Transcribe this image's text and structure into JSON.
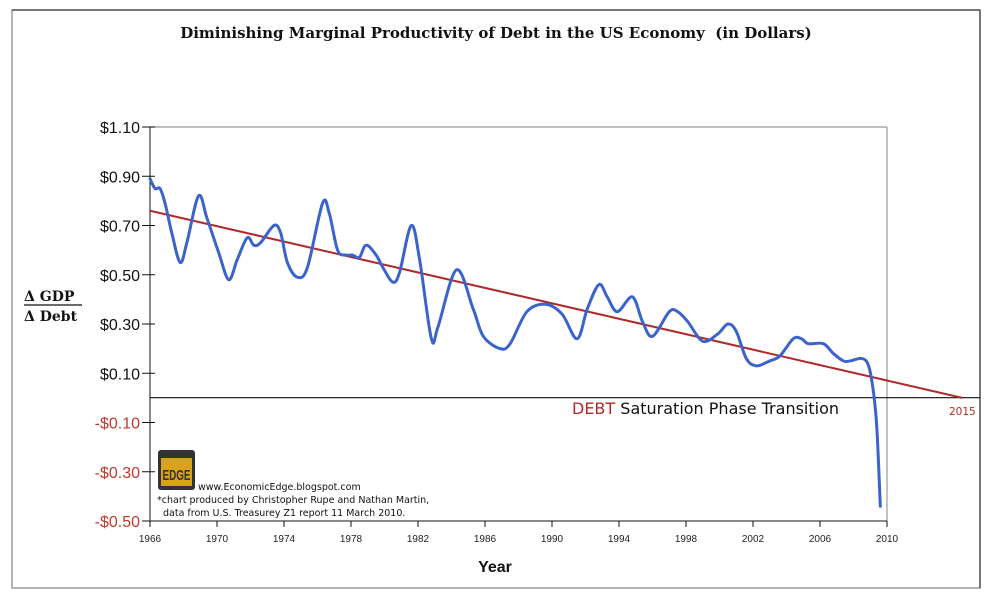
{
  "chart_data": {
    "type": "line",
    "title": "Diminishing Marginal Productivity of Debt in the US Economy  (in Dollars)",
    "xlabel": "Year",
    "ylabel_numerator": "Δ GDP",
    "ylabel_denominator": "Δ Debt",
    "xlim": [
      1966,
      2010
    ],
    "ylim": [
      -0.5,
      1.1
    ],
    "x_ticks": [
      "1966",
      "1970",
      "1974",
      "1978",
      "1982",
      "1986",
      "1990",
      "1994",
      "1998",
      "2002",
      "2006",
      "2010"
    ],
    "y_ticks": [
      {
        "value": 1.1,
        "label": "$1.10"
      },
      {
        "value": 0.9,
        "label": "$0.90"
      },
      {
        "value": 0.7,
        "label": "$0.70"
      },
      {
        "value": 0.5,
        "label": "$0.50"
      },
      {
        "value": 0.3,
        "label": "$0.30"
      },
      {
        "value": 0.1,
        "label": "$0.10"
      },
      {
        "value": -0.1,
        "label": "-$0.10"
      },
      {
        "value": -0.3,
        "label": "-$0.30"
      },
      {
        "value": -0.5,
        "label": "-$0.50"
      }
    ],
    "grid": false,
    "colors": {
      "series": "#3a63cc",
      "trend": "#b02a2a",
      "positive_tick": "#111111",
      "negative_tick": "#c0392b",
      "debt_word": "#b02a2a"
    },
    "series": [
      {
        "x": [
          1966.0,
          1966.3,
          1966.6,
          1966.9,
          1967.3,
          1967.8,
          1968.2,
          1968.9,
          1969.4,
          1970.1,
          1970.7,
          1971.2,
          1971.8,
          1972.2,
          1972.6,
          1973.4,
          1973.8,
          1974.2,
          1974.8,
          1975.4,
          1976.3,
          1976.7,
          1977.2,
          1977.7,
          1978.1,
          1978.5,
          1978.9,
          1979.5,
          1979.9,
          1980.5,
          1980.9,
          1981.6,
          1982.1,
          1982.8,
          1983.2,
          1984.3,
          1985.3,
          1985.9,
          1986.9,
          1987.5,
          1988.5,
          1989.6,
          1990.6,
          1991.5,
          1992.1,
          1992.8,
          1993.3,
          1993.9,
          1994.8,
          1995.4,
          1996.0,
          1997.0,
          1997.5,
          1998.1,
          1999.0,
          1999.9,
          2000.5,
          2001.0,
          2001.6,
          2002.2,
          2003.0,
          2003.6,
          2004.4,
          2004.9,
          2005.3,
          2006.2,
          2006.8,
          2007.4,
          2007.8,
          2008.5,
          2008.9,
          2009.2,
          2009.4,
          2009.6
        ],
        "y": [
          0.89,
          0.85,
          0.85,
          0.79,
          0.67,
          0.55,
          0.63,
          0.82,
          0.73,
          0.59,
          0.48,
          0.56,
          0.65,
          0.62,
          0.63,
          0.7,
          0.67,
          0.55,
          0.49,
          0.53,
          0.79,
          0.75,
          0.6,
          0.58,
          0.58,
          0.57,
          0.62,
          0.58,
          0.53,
          0.47,
          0.51,
          0.7,
          0.56,
          0.24,
          0.29,
          0.52,
          0.36,
          0.25,
          0.2,
          0.22,
          0.35,
          0.38,
          0.34,
          0.24,
          0.36,
          0.46,
          0.41,
          0.35,
          0.41,
          0.31,
          0.25,
          0.35,
          0.35,
          0.31,
          0.23,
          0.26,
          0.3,
          0.27,
          0.16,
          0.13,
          0.15,
          0.17,
          0.24,
          0.24,
          0.22,
          0.22,
          0.18,
          0.15,
          0.15,
          0.16,
          0.13,
          0.02,
          -0.13,
          -0.44
        ]
      }
    ],
    "trend_line": {
      "x": [
        1966,
        2014.5
      ],
      "y": [
        0.76,
        0.0
      ],
      "end_label": "2015"
    },
    "annotation": {
      "highlight": "DEBT",
      "rest": "Saturation Phase Transition"
    },
    "credits": {
      "url": "www.EconomicEdge.blogspot.com",
      "line1": "*chart produced by Christopher Rupe and Nathan Martin,",
      "line2": "data from U.S. Treasurey Z1 report 11 March 2010.",
      "logo_text": "EDGE"
    }
  }
}
